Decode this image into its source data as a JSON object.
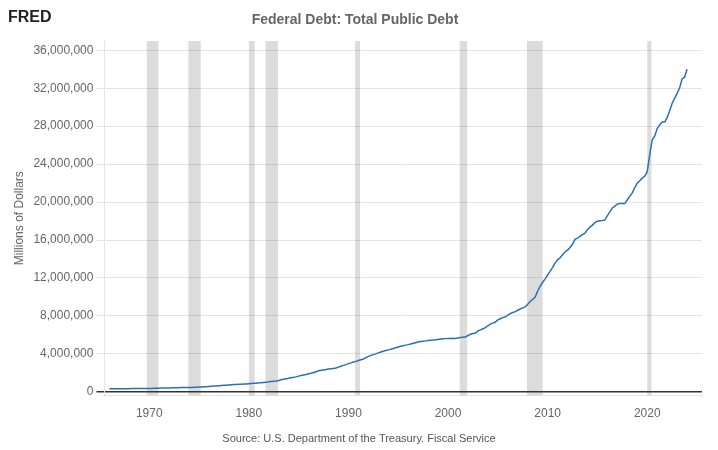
{
  "chart_data": {
    "type": "line",
    "title": "Federal Debt: Total Public Debt",
    "ylabel": "Millions of Dollars",
    "annotations": [
      "FRED",
      "Source: U.S. Department of the Treasury. Fiscal Service"
    ],
    "color": "#2970b5",
    "grid": "y",
    "recessions": [
      [
        1969.75,
        1970.92
      ],
      [
        1973.92,
        1975.17
      ],
      [
        1980.0,
        1980.58
      ],
      [
        1981.67,
        1982.92
      ],
      [
        1990.67,
        1991.17
      ],
      [
        2001.17,
        2001.92
      ],
      [
        2007.92,
        2009.5
      ],
      [
        2020.0,
        2020.42
      ]
    ],
    "recession_color": "#dcdcdc",
    "xlim": [
      1965.5,
      2025.5
    ],
    "xticks": [
      1970,
      1980,
      1990,
      2000,
      2010,
      2020
    ],
    "ylim": [
      -400000,
      37000000
    ],
    "yticks": [
      0,
      {
        "value": 4000000,
        "label": "4,000,000"
      },
      {
        "value": 8000000,
        "label": "8,000,000"
      },
      {
        "value": 12000000,
        "label": "12,000,000"
      },
      {
        "value": 16000000,
        "label": "16,000,000"
      },
      {
        "value": 20000000,
        "label": "20,000,000"
      },
      {
        "value": 24000000,
        "label": "24,000,000"
      },
      {
        "value": 28000000,
        "label": "28,000,000"
      },
      {
        "value": 32000000,
        "label": "32,000,000"
      },
      {
        "value": 36000000,
        "label": "36,000,000"
      }
    ],
    "x": [
      1966.0,
      1966.25,
      1966.5,
      1966.75,
      1967.0,
      1967.25,
      1967.5,
      1967.75,
      1968.0,
      1968.25,
      1968.5,
      1968.75,
      1969.0,
      1969.25,
      1969.5,
      1969.75,
      1970.0,
      1970.25,
      1970.5,
      1970.75,
      1971.0,
      1971.25,
      1971.5,
      1971.75,
      1972.0,
      1972.25,
      1972.5,
      1972.75,
      1973.0,
      1973.25,
      1973.5,
      1973.75,
      1974.0,
      1974.25,
      1974.5,
      1974.75,
      1975.0,
      1975.25,
      1975.5,
      1975.75,
      1976.0,
      1976.25,
      1976.5,
      1976.75,
      1977.0,
      1977.25,
      1977.5,
      1977.75,
      1978.0,
      1978.25,
      1978.5,
      1978.75,
      1979.0,
      1979.25,
      1979.5,
      1979.75,
      1980.0,
      1980.25,
      1980.5,
      1980.75,
      1981.0,
      1981.25,
      1981.5,
      1981.75,
      1982.0,
      1982.25,
      1982.5,
      1982.75,
      1983.0,
      1983.25,
      1983.5,
      1983.75,
      1984.0,
      1984.25,
      1984.5,
      1984.75,
      1985.0,
      1985.25,
      1985.5,
      1985.75,
      1986.0,
      1986.25,
      1986.5,
      1986.75,
      1987.0,
      1987.25,
      1987.5,
      1987.75,
      1988.0,
      1988.25,
      1988.5,
      1988.75,
      1989.0,
      1989.25,
      1989.5,
      1989.75,
      1990.0,
      1990.25,
      1990.5,
      1990.75,
      1991.0,
      1991.25,
      1991.5,
      1991.75,
      1992.0,
      1992.25,
      1992.5,
      1992.75,
      1993.0,
      1993.25,
      1993.5,
      1993.75,
      1994.0,
      1994.25,
      1994.5,
      1994.75,
      1995.0,
      1995.25,
      1995.5,
      1995.75,
      1996.0,
      1996.25,
      1996.5,
      1996.75,
      1997.0,
      1997.25,
      1997.5,
      1997.75,
      1998.0,
      1998.25,
      1998.5,
      1998.75,
      1999.0,
      1999.25,
      1999.5,
      1999.75,
      2000.0,
      2000.25,
      2000.5,
      2000.75,
      2001.0,
      2001.25,
      2001.5,
      2001.75,
      2002.0,
      2002.25,
      2002.5,
      2002.75,
      2003.0,
      2003.25,
      2003.5,
      2003.75,
      2004.0,
      2004.25,
      2004.5,
      2004.75,
      2005.0,
      2005.25,
      2005.5,
      2005.75,
      2006.0,
      2006.25,
      2006.5,
      2006.75,
      2007.0,
      2007.25,
      2007.5,
      2007.75,
      2008.0,
      2008.25,
      2008.5,
      2008.75,
      2009.0,
      2009.25,
      2009.5,
      2009.75,
      2010.0,
      2010.25,
      2010.5,
      2010.75,
      2011.0,
      2011.25,
      2011.5,
      2011.75,
      2012.0,
      2012.25,
      2012.5,
      2012.75,
      2013.0,
      2013.25,
      2013.5,
      2013.75,
      2014.0,
      2014.25,
      2014.5,
      2014.75,
      2015.0,
      2015.25,
      2015.5,
      2015.75,
      2016.0,
      2016.25,
      2016.5,
      2016.75,
      2017.0,
      2017.25,
      2017.5,
      2017.75,
      2018.0,
      2018.25,
      2018.5,
      2018.75,
      2019.0,
      2019.25,
      2019.5,
      2019.75,
      2020.0,
      2020.25,
      2020.5,
      2020.75,
      2021.0,
      2021.25,
      2021.5,
      2021.75,
      2022.0,
      2022.25,
      2022.5,
      2022.75,
      2023.0,
      2023.25,
      2023.5,
      2023.75,
      2024.0
    ],
    "values": [
      316000,
      318000,
      319000,
      319907,
      322000,
      324000,
      325000,
      326358,
      334000,
      340000,
      345000,
      347578,
      349000,
      351000,
      352000,
      353720,
      357000,
      361000,
      366000,
      370918,
      380000,
      388000,
      394000,
      398129,
      408000,
      415000,
      421000,
      427260,
      436000,
      444000,
      451000,
      458141,
      462000,
      466000,
      470000,
      475059,
      495000,
      508000,
      521000,
      533189,
      557000,
      579000,
      601000,
      620433,
      644000,
      665000,
      683000,
      698840,
      724000,
      742000,
      758000,
      771544,
      790000,
      805000,
      815000,
      826519,
      857000,
      877000,
      892000,
      907701,
      942000,
      963000,
      979000,
      994845,
      1058000,
      1087000,
      1116000,
      1142034,
      1198000,
      1265000,
      1322000,
      1377210,
      1434000,
      1481000,
      1527000,
      1572266,
      1655000,
      1713000,
      1768000,
      1823103,
      1904000,
      1963000,
      2035000,
      2120629,
      2216000,
      2265000,
      2309000,
      2345956,
      2393000,
      2429000,
      2468000,
      2507163,
      2601000,
      2693000,
      2783000,
      2867500,
      2974000,
      3050000,
      3133000,
      3206290,
      3300000,
      3380000,
      3461000,
      3598178,
      3735000,
      3835000,
      3919000,
      4001787,
      4108000,
      4200000,
      4281000,
      4351044,
      4420000,
      4493000,
      4569000,
      4643307,
      4723000,
      4802000,
      4861000,
      4920586,
      4974000,
      5047000,
      5113000,
      5181465,
      5248000,
      5296000,
      5334000,
      5369206,
      5411000,
      5437000,
      5460000,
      5478189,
      5520000,
      5558000,
      5582000,
      5605523,
      5627000,
      5631000,
      5635000,
      5628700,
      5674000,
      5720000,
      5751000,
      5769881,
      5933000,
      6073000,
      6137000,
      6198401,
      6413000,
      6528000,
      6645000,
      6760014,
      6963000,
      7130000,
      7245000,
      7354657,
      7579000,
      7706000,
      7819000,
      7905300,
      8073000,
      8238000,
      8360000,
      8451350,
      8597000,
      8726000,
      8841000,
      8950744,
      9228000,
      9527000,
      9759000,
      9986082,
      10632000,
      11128000,
      11544000,
      11909829,
      12311000,
      12703000,
      13119000,
      13561623,
      13907000,
      14136000,
      14450000,
      14764222,
      14935000,
      15222000,
      15580000,
      16066241,
      16198000,
      16395000,
      16561000,
      16719434,
      17097000,
      17365000,
      17569000,
      17824071,
      17985000,
      18019000,
      18054000,
      18120106,
      18567000,
      18960000,
      19382000,
      19573445,
      19805000,
      19845000,
      19844000,
      19844533,
      20245000,
      20596000,
      20969000,
      21516058,
      21990000,
      22248000,
      22523000,
      22719401,
      23201000,
      24974000,
      26574000,
      26945391,
      27748000,
      28134000,
      28429000,
      28428919,
      28898000,
      29617000,
      30397000,
      30928911,
      31459000,
      32023000,
      32980000,
      33167000,
      34000000
    ]
  }
}
